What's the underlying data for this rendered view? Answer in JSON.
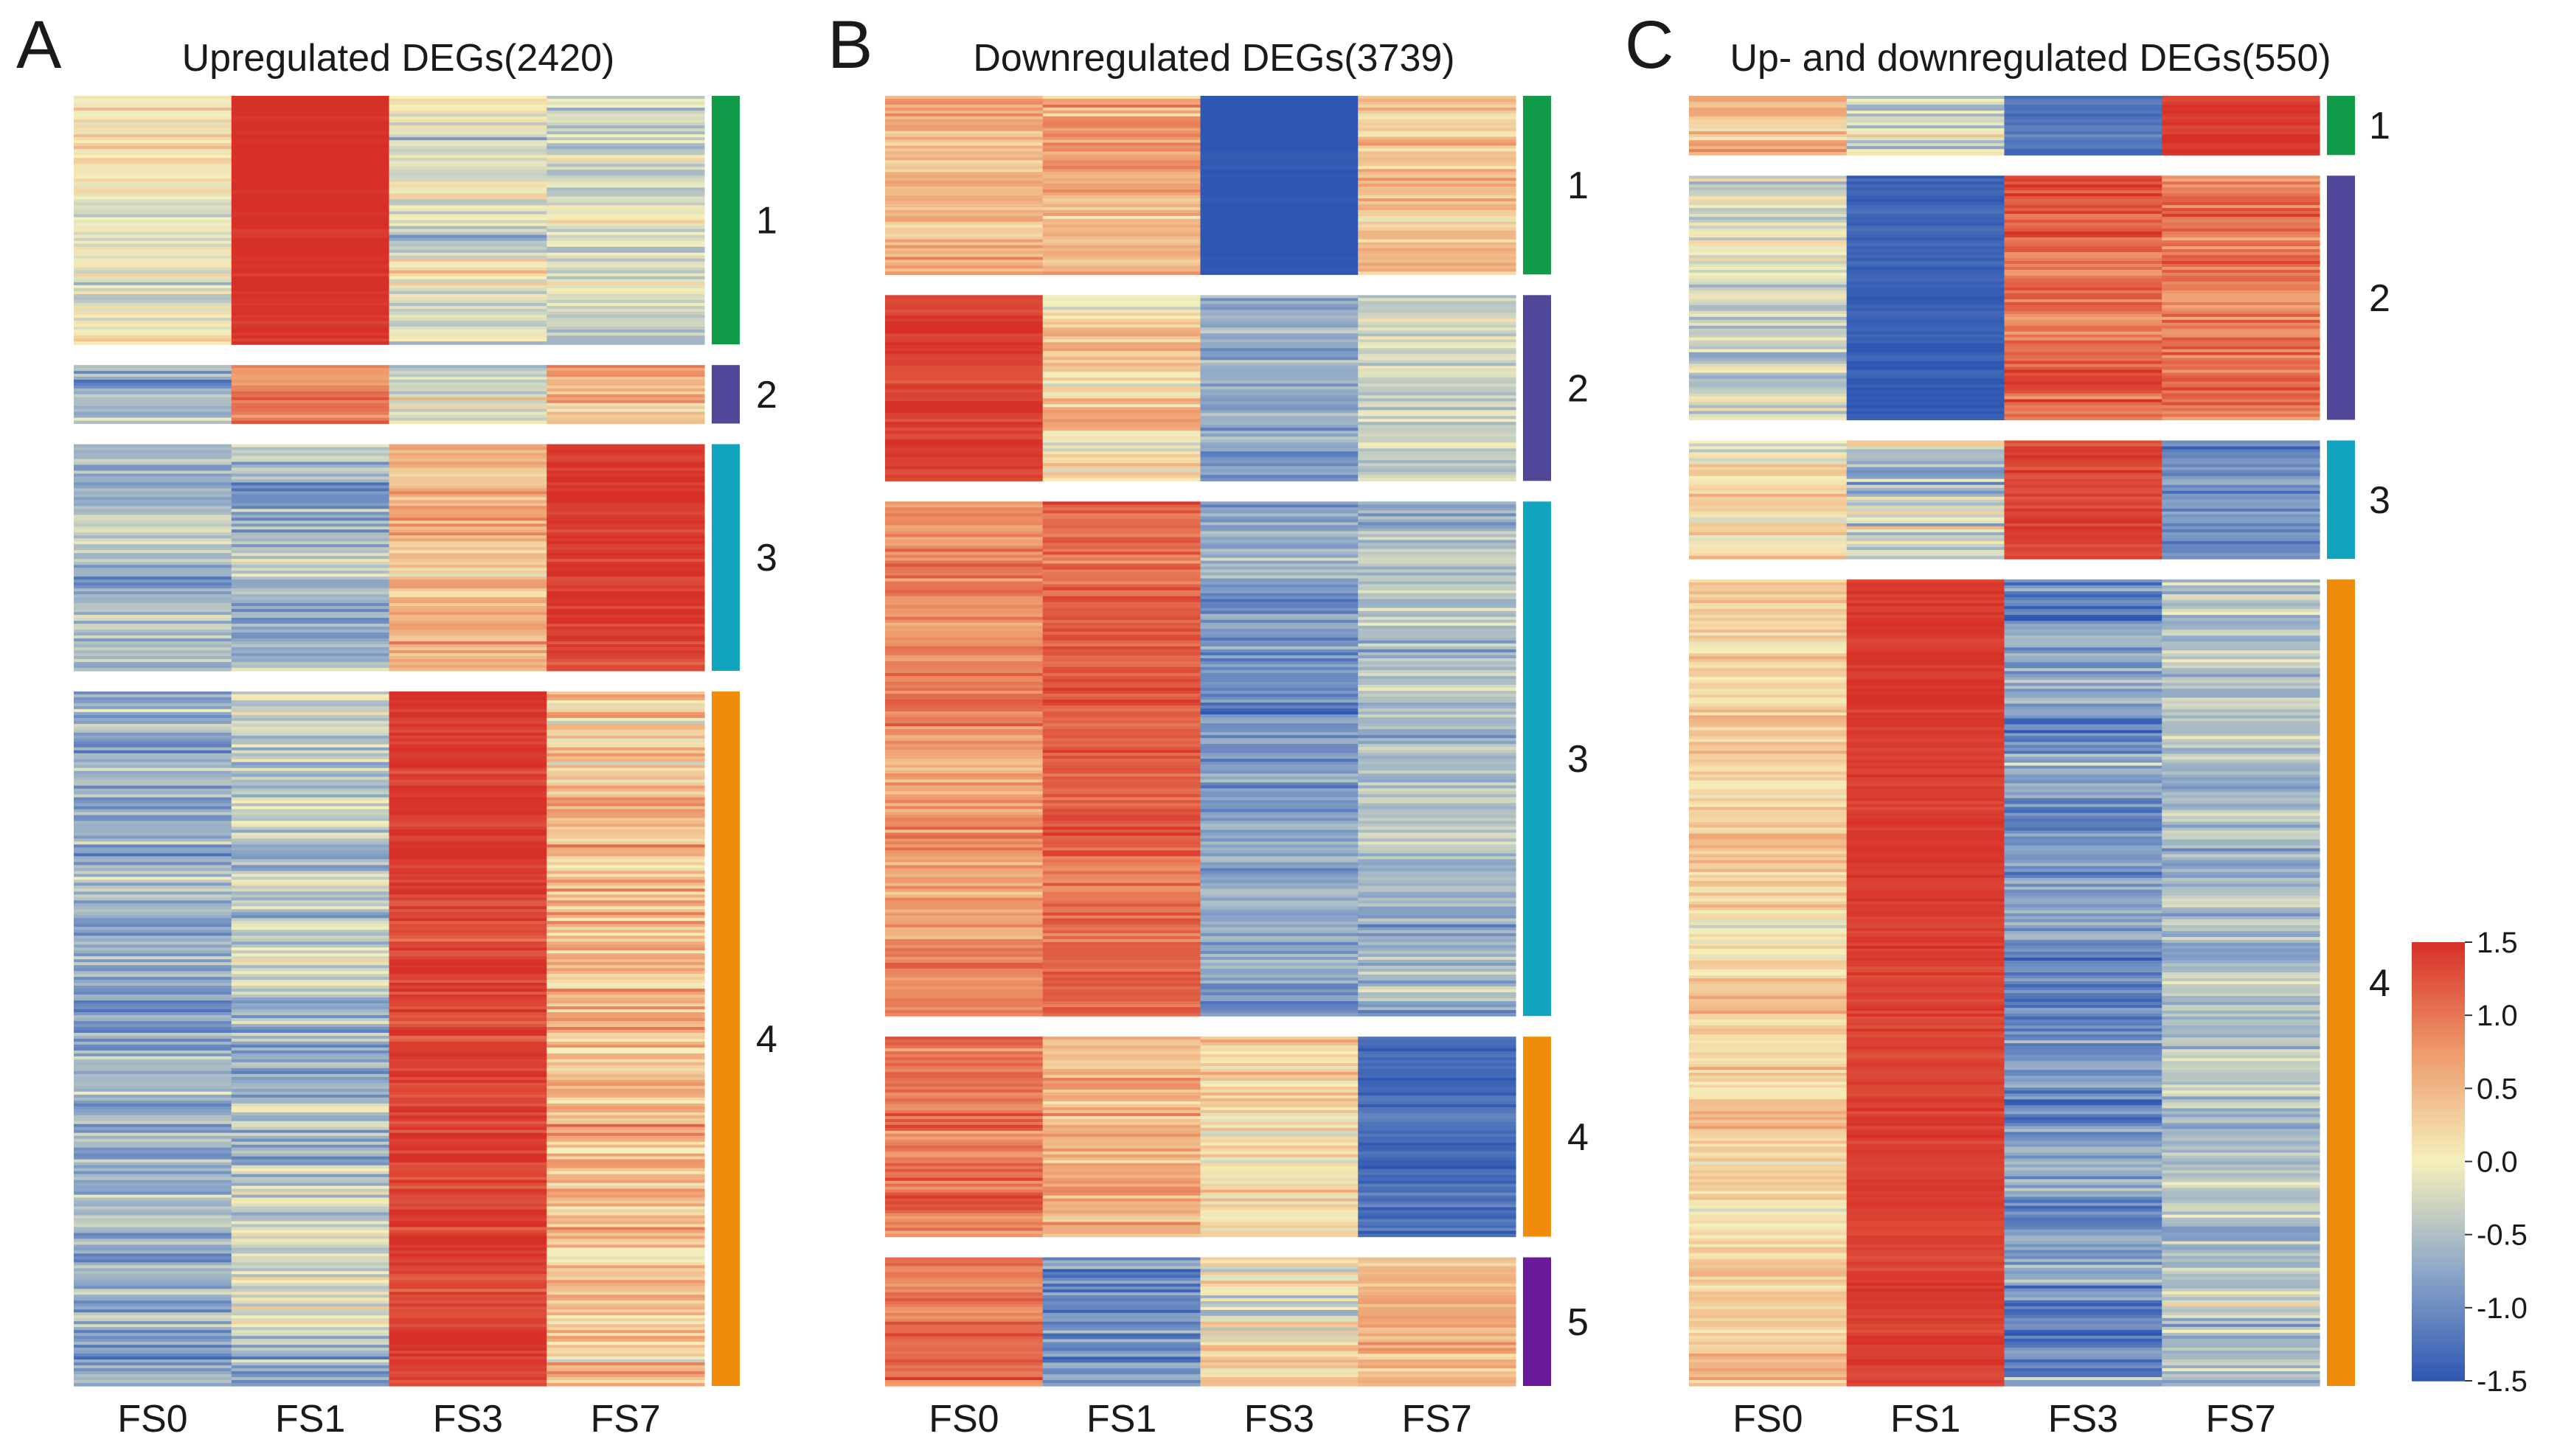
{
  "chart_data": [
    {
      "type": "heatmap",
      "panel": "A",
      "title": "Upregulated DEGs(2420)",
      "samples": [
        "FS0",
        "FS1",
        "FS3",
        "FS7"
      ],
      "clusters": [
        {
          "label": "1",
          "color": "#119a47",
          "size_units": 3.4,
          "means": [
            0.0,
            1.5,
            -0.2,
            -0.3
          ],
          "spread": [
            0.35,
            0.1,
            0.45,
            0.4
          ]
        },
        {
          "label": "2",
          "color": "#4f4798",
          "size_units": 0.8,
          "means": [
            -0.6,
            0.9,
            -0.4,
            0.7
          ],
          "spread": [
            0.5,
            0.3,
            0.4,
            0.4
          ]
        },
        {
          "label": "3",
          "color": "#11a4be",
          "size_units": 3.1,
          "means": [
            -0.6,
            -0.4,
            0.5,
            1.4
          ],
          "spread": [
            0.4,
            0.45,
            0.4,
            0.15
          ]
        },
        {
          "label": "4",
          "color": "#f08c0a",
          "size_units": 9.5,
          "means": [
            -0.7,
            -0.4,
            1.4,
            0.4
          ],
          "spread": [
            0.45,
            0.5,
            0.2,
            0.5
          ]
        }
      ]
    },
    {
      "type": "heatmap",
      "panel": "B",
      "title": "Downregulated DEGs(3739)",
      "samples": [
        "FS0",
        "FS1",
        "FS3",
        "FS7"
      ],
      "clusters": [
        {
          "label": "1",
          "color": "#119a47",
          "size_units": 2.5,
          "means": [
            0.6,
            0.6,
            -1.5,
            0.4
          ],
          "spread": [
            0.35,
            0.35,
            0.05,
            0.35
          ]
        },
        {
          "label": "2",
          "color": "#4f4798",
          "size_units": 2.6,
          "means": [
            1.4,
            0.3,
            -0.7,
            -0.3
          ],
          "spread": [
            0.15,
            0.45,
            0.4,
            0.4
          ]
        },
        {
          "label": "3",
          "color": "#11a4be",
          "size_units": 7.2,
          "means": [
            0.9,
            1.1,
            -0.8,
            -0.5
          ],
          "spread": [
            0.3,
            0.25,
            0.35,
            0.35
          ]
        },
        {
          "label": "4",
          "color": "#f08c0a",
          "size_units": 2.8,
          "means": [
            1.0,
            0.6,
            0.3,
            -1.3
          ],
          "spread": [
            0.3,
            0.4,
            0.45,
            0.2
          ]
        },
        {
          "label": "5",
          "color": "#6a1b9a",
          "size_units": 1.8,
          "means": [
            1.0,
            -0.9,
            0.1,
            0.5
          ],
          "spread": [
            0.3,
            0.5,
            0.55,
            0.35
          ]
        }
      ]
    },
    {
      "type": "heatmap",
      "panel": "C",
      "title": "Up- and downregulated DEGs(550)",
      "samples": [
        "FS0",
        "FS1",
        "FS3",
        "FS7"
      ],
      "clusters": [
        {
          "label": "1",
          "color": "#119a47",
          "size_units": 0.8,
          "means": [
            0.4,
            -0.2,
            -1.2,
            1.4
          ],
          "spread": [
            0.4,
            0.45,
            0.15,
            0.15
          ]
        },
        {
          "label": "2",
          "color": "#4f4798",
          "size_units": 3.3,
          "means": [
            -0.2,
            -1.4,
            1.1,
            1.0
          ],
          "spread": [
            0.4,
            0.1,
            0.35,
            0.4
          ]
        },
        {
          "label": "3",
          "color": "#11a4be",
          "size_units": 1.6,
          "means": [
            0.1,
            -0.3,
            1.4,
            -0.9
          ],
          "spread": [
            0.4,
            0.55,
            0.2,
            0.35
          ]
        },
        {
          "label": "4",
          "color": "#f08c0a",
          "size_units": 10.9,
          "means": [
            0.3,
            1.4,
            -0.9,
            -0.5
          ],
          "spread": [
            0.3,
            0.1,
            0.45,
            0.4
          ]
        }
      ]
    }
  ],
  "colorbar": {
    "ticks": [
      "1.5",
      "1.0",
      "0.5",
      "0.0",
      "-0.5",
      "-1.0",
      "-1.5"
    ],
    "vmin": -1.5,
    "vmax": 1.5,
    "colors": [
      "#2e57b3",
      "#8da7c7",
      "#f5f0bc",
      "#ee9a6c",
      "#d73027"
    ]
  }
}
